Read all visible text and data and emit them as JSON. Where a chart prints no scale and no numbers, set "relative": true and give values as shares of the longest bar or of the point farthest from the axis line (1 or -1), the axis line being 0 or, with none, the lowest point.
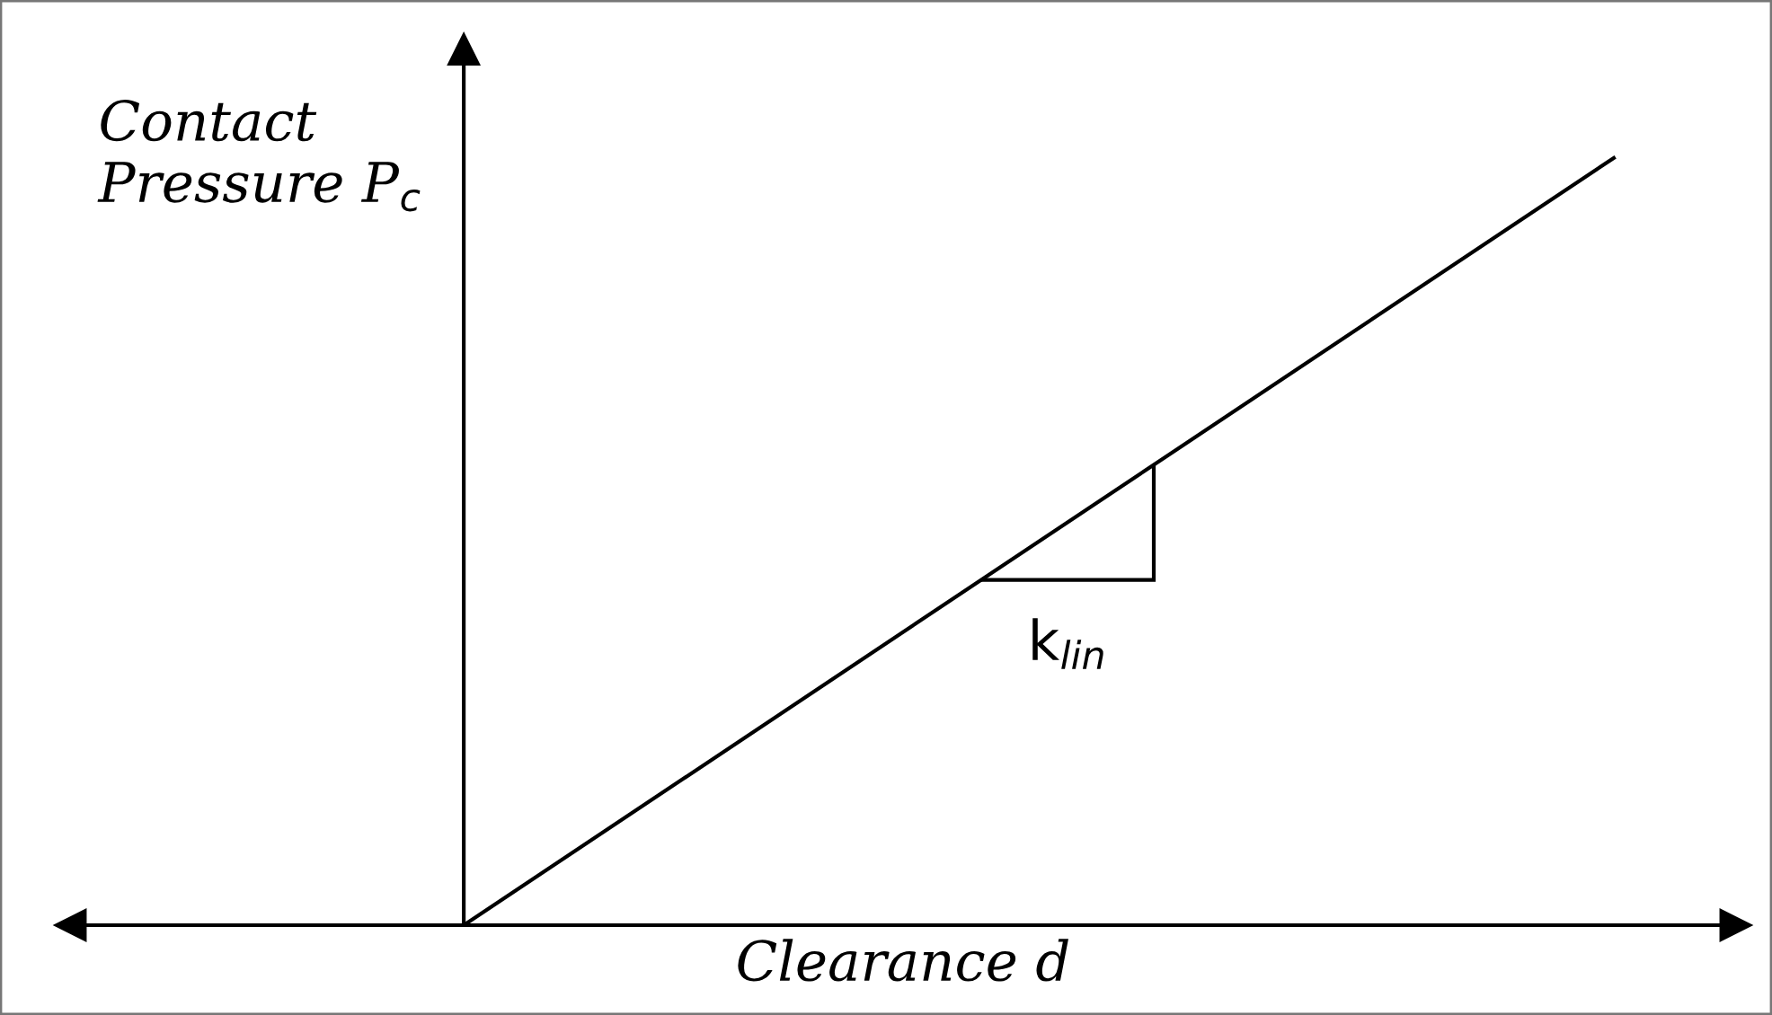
{
  "chart_data": {
    "type": "line",
    "relative": true,
    "categories": [
      null,
      null
    ],
    "series": [
      {
        "color": "#000000",
        "values": [
          0,
          1
        ]
      }
    ],
    "xlabel": "Clearance d",
    "ylabel": "Contact Pressure P$_{c}$",
    "annotations": [
      "k$_{lin}$"
    ],
    "grid": false,
    "legend": false,
    "marker": "none",
    "line_style": "solid"
  }
}
